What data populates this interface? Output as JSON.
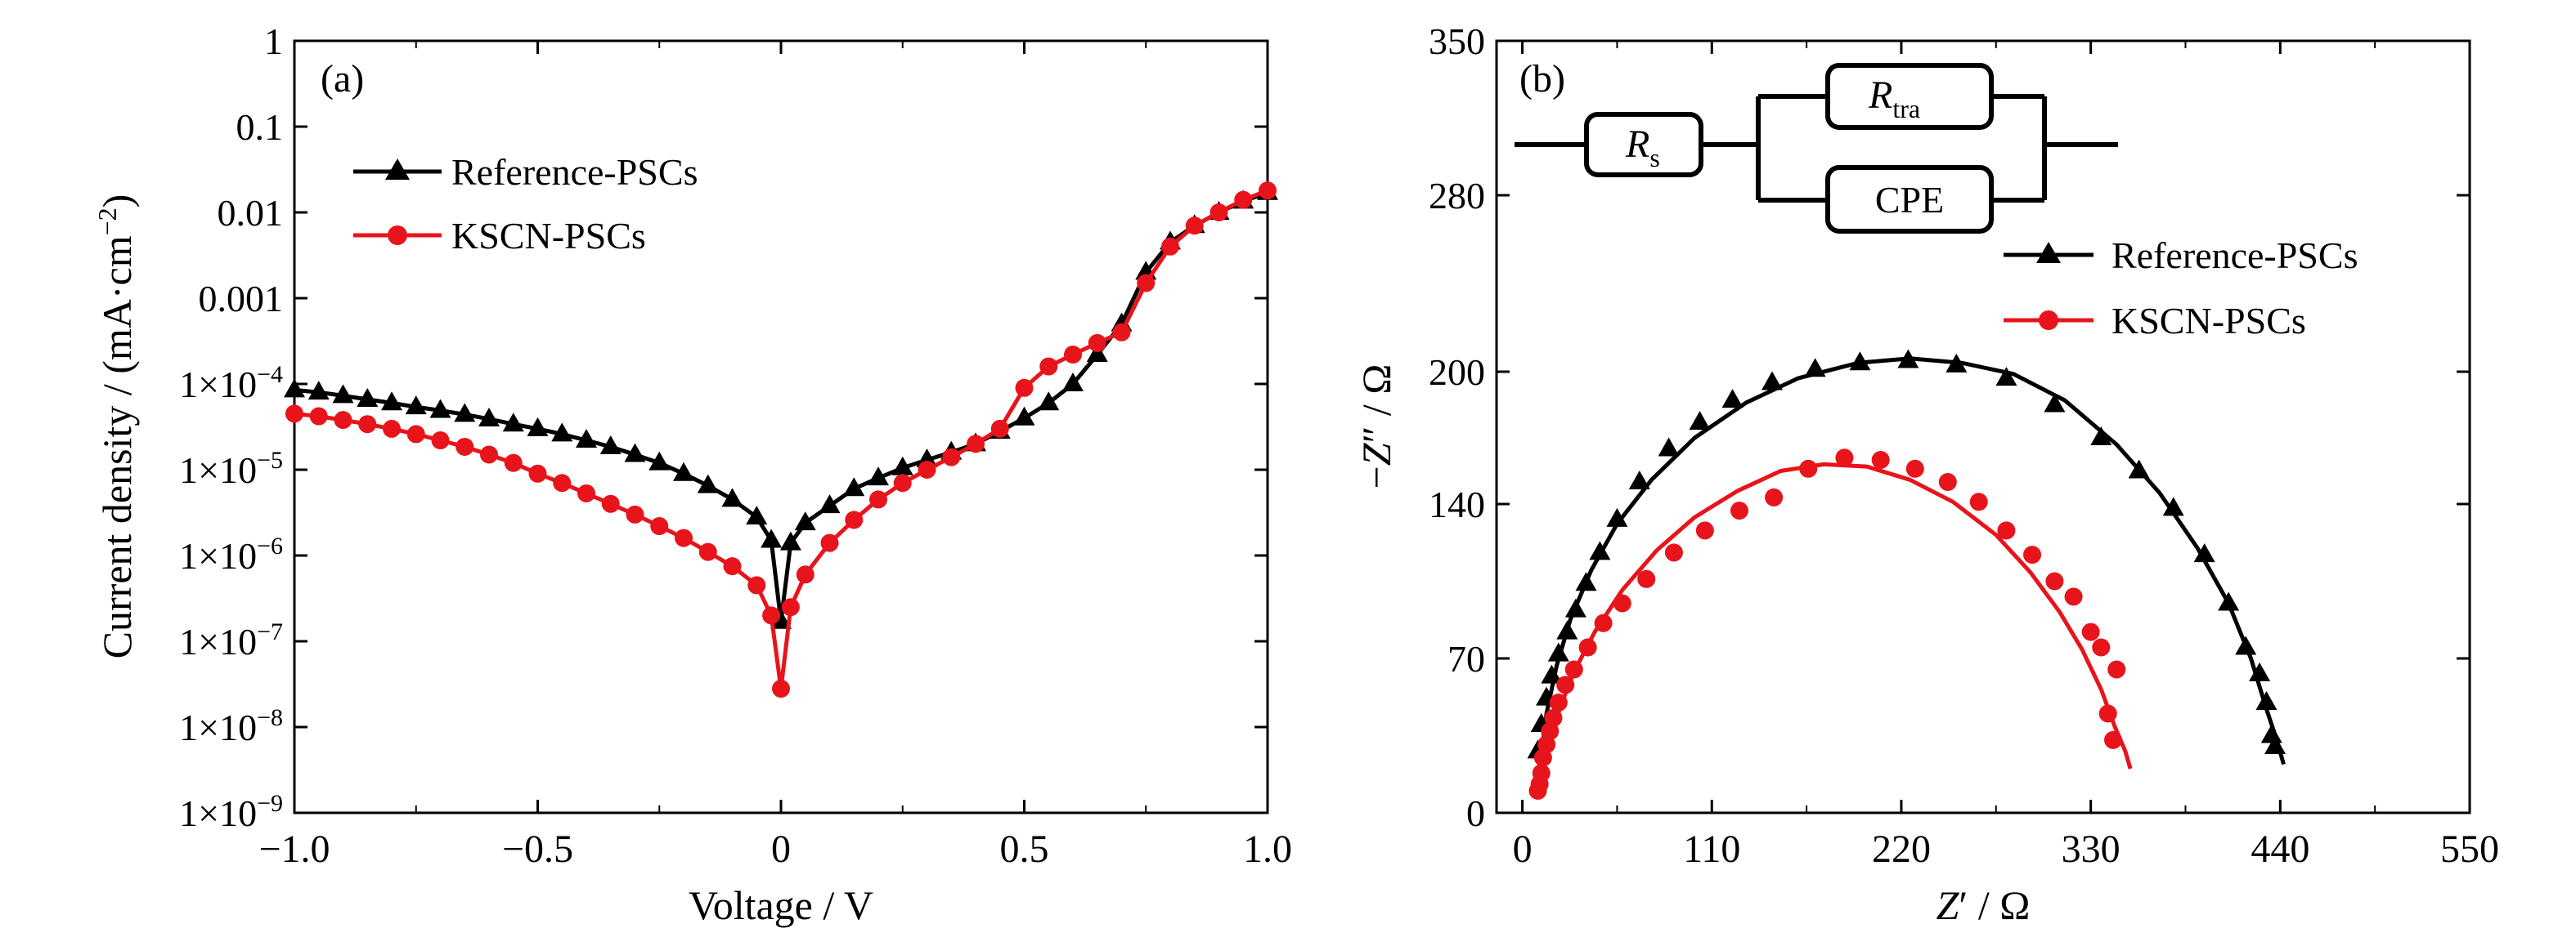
{
  "chart_data": [
    {
      "panel_label": "(a)",
      "type": "line",
      "ylabel": "Current density / (mA·cm⁻²)",
      "ylabel_parts": {
        "main": "Current density / (mA·cm",
        "exp": "−2",
        "close": ")"
      },
      "xlabel": "Voltage / V",
      "xlim": [
        -1.0,
        1.0
      ],
      "ylim": [
        1e-09,
        1
      ],
      "yscale": "log",
      "xticks": [
        -1.0,
        -0.5,
        0,
        0.5,
        1.0
      ],
      "xtick_labels": [
        "−1.0",
        "−0.5",
        "0",
        "0.5",
        "1.0"
      ],
      "yticks": [
        1,
        0.1,
        0.01,
        0.001,
        0.0001,
        1e-05,
        1e-06,
        1e-07,
        1e-08,
        1e-09
      ],
      "ytick_labels": [
        {
          "text": "1"
        },
        {
          "text": "0.1"
        },
        {
          "text": "0.01"
        },
        {
          "text": "0.001"
        },
        {
          "base": "1×10",
          "exp": "−4"
        },
        {
          "base": "1×10",
          "exp": "−5"
        },
        {
          "base": "1×10",
          "exp": "−6"
        },
        {
          "base": "1×10",
          "exp": "−7"
        },
        {
          "base": "1×10",
          "exp": "−8"
        },
        {
          "base": "1×10",
          "exp": "−9"
        }
      ],
      "legend_position": "top-left",
      "series": [
        {
          "name": "Reference-PSCs",
          "color": "#000000",
          "marker": "triangle",
          "x": [
            -1.0,
            -0.95,
            -0.9,
            -0.85,
            -0.8,
            -0.75,
            -0.7,
            -0.65,
            -0.6,
            -0.55,
            -0.5,
            -0.45,
            -0.4,
            -0.35,
            -0.3,
            -0.25,
            -0.2,
            -0.15,
            -0.1,
            -0.05,
            -0.02,
            0,
            0.02,
            0.05,
            0.1,
            0.15,
            0.2,
            0.25,
            0.3,
            0.35,
            0.4,
            0.45,
            0.5,
            0.55,
            0.6,
            0.65,
            0.7,
            0.75,
            0.8,
            0.85,
            0.9,
            0.95,
            1.0
          ],
          "y": [
            8.5e-05,
            8e-05,
            7.3e-05,
            6.6e-05,
            6e-05,
            5.4e-05,
            4.9e-05,
            4.4e-05,
            3.9e-05,
            3.4e-05,
            3e-05,
            2.6e-05,
            2.2e-05,
            1.85e-05,
            1.5e-05,
            1.2e-05,
            9e-06,
            6.5e-06,
            4.5e-06,
            2.8e-06,
            1.5e-06,
            1.7e-07,
            1.4e-06,
            2.4e-06,
            3.8e-06,
            6e-06,
            8e-06,
            1.05e-05,
            1.3e-05,
            1.6e-05,
            2e-05,
            2.8e-05,
            4e-05,
            6e-05,
            0.0001,
            0.00022,
            0.0005,
            0.002,
            0.0045,
            0.007,
            0.01,
            0.0135,
            0.017
          ]
        },
        {
          "name": "KSCN-PSCs",
          "color": "#e8141b",
          "marker": "circle",
          "x": [
            -1.0,
            -0.95,
            -0.9,
            -0.85,
            -0.8,
            -0.75,
            -0.7,
            -0.65,
            -0.6,
            -0.55,
            -0.5,
            -0.45,
            -0.4,
            -0.35,
            -0.3,
            -0.25,
            -0.2,
            -0.15,
            -0.1,
            -0.05,
            -0.02,
            0,
            0.02,
            0.05,
            0.1,
            0.15,
            0.2,
            0.25,
            0.3,
            0.35,
            0.4,
            0.45,
            0.5,
            0.55,
            0.6,
            0.65,
            0.7,
            0.75,
            0.8,
            0.85,
            0.9,
            0.95,
            1.0
          ],
          "y": [
            4.5e-05,
            4.2e-05,
            3.8e-05,
            3.4e-05,
            3e-05,
            2.6e-05,
            2.2e-05,
            1.85e-05,
            1.5e-05,
            1.2e-05,
            9e-06,
            7e-06,
            5.3e-06,
            4e-06,
            3e-06,
            2.2e-06,
            1.6e-06,
            1.1e-06,
            7.5e-07,
            4.5e-07,
            2e-07,
            2.8e-08,
            2.5e-07,
            6e-07,
            1.4e-06,
            2.6e-06,
            4.5e-06,
            7e-06,
            1e-05,
            1.4e-05,
            2e-05,
            3e-05,
            9e-05,
            0.00016,
            0.00022,
            0.0003,
            0.0004,
            0.0015,
            0.004,
            0.007,
            0.01,
            0.014,
            0.018
          ]
        }
      ]
    },
    {
      "panel_label": "(b)",
      "type": "scatter",
      "xlabel": "Z′ / Ω",
      "xlabel_parts": {
        "var": "Z",
        "rest": "′ / Ω"
      },
      "ylabel": "−Z″ / Ω",
      "ylabel_parts": {
        "minus": "−",
        "var": "Z",
        "rest": "″ / Ω"
      },
      "xlim": [
        -15,
        550
      ],
      "ylim": [
        0,
        350
      ],
      "xticks": [
        0,
        110,
        220,
        330,
        440,
        550
      ],
      "xtick_labels": [
        "0",
        "110",
        "220",
        "330",
        "440",
        "550"
      ],
      "yticks": [
        0,
        70,
        140,
        200,
        280,
        350
      ],
      "ytick_labels": [
        "0",
        "70",
        "140",
        "200",
        "280",
        "350"
      ],
      "legend_position": "top-right",
      "circuit_labels": {
        "rs_main": "R",
        "rs_sub": "s",
        "rtra_main": "R",
        "rtra_sub": "tra",
        "cpe": "CPE"
      },
      "series": [
        {
          "name": "Reference-PSCs",
          "color": "#000000",
          "marker": "triangle",
          "x": [
            9,
            11,
            14,
            17,
            21,
            26,
            31,
            37,
            45,
            55,
            68,
            85,
            103,
            122,
            145,
            170,
            196,
            224,
            252,
            281,
            309,
            336,
            358,
            378,
            396,
            410,
            420,
            428,
            432,
            435,
            437
          ],
          "y": [
            28,
            40,
            52,
            62,
            72,
            82,
            92,
            104,
            118,
            133,
            150,
            165,
            177,
            187,
            195,
            201,
            204,
            205,
            203,
            197,
            185,
            170,
            155,
            138,
            117,
            95,
            75,
            63,
            50,
            35,
            30
          ],
          "fit_x": [
            10,
            14,
            20,
            28,
            40,
            55,
            75,
            100,
            130,
            160,
            195,
            225,
            255,
            285,
            315,
            345,
            370,
            392,
            410,
            423,
            432,
            438,
            442
          ],
          "fit_y": [
            20,
            45,
            67,
            88,
            110,
            131,
            151,
            170,
            186,
            197,
            204,
            206,
            204,
            199,
            187,
            167,
            145,
            120,
            95,
            70,
            47,
            33,
            22
          ]
        },
        {
          "name": "KSCN-PSCs",
          "color": "#e8141b",
          "marker": "circle",
          "x": [
            9,
            10,
            11,
            12,
            14,
            16,
            18,
            21,
            25,
            30,
            38,
            47,
            58,
            72,
            88,
            106,
            126,
            146,
            166,
            187,
            208,
            228,
            247,
            265,
            281,
            296,
            309,
            320,
            330,
            336,
            340,
            343,
            345
          ],
          "y": [
            10,
            13,
            18,
            25,
            31,
            37,
            43,
            50,
            58,
            65,
            75,
            86,
            95,
            106,
            118,
            128,
            137,
            143,
            156,
            161,
            160,
            156,
            150,
            141,
            128,
            117,
            105,
            98,
            82,
            75,
            45,
            33,
            65
          ],
          "fit_x": [
            10,
            12,
            16,
            22,
            30,
            42,
            58,
            78,
            100,
            125,
            150,
            175,
            200,
            225,
            250,
            275,
            295,
            312,
            325,
            336,
            344,
            350,
            353
          ],
          "fit_y": [
            10,
            20,
            33,
            48,
            64,
            82,
            101,
            119,
            134,
            146,
            155,
            158,
            157,
            151,
            141,
            126,
            109,
            91,
            74,
            56,
            39,
            28,
            20
          ]
        }
      ]
    }
  ]
}
